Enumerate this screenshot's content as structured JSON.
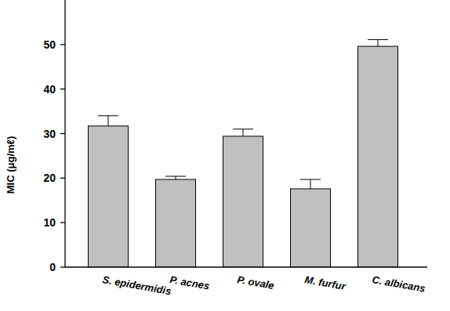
{
  "chart_data": {
    "type": "bar",
    "y_label": "MIC (μg/mℓ)",
    "categories": [
      "S. epidermidis",
      "P. acnes",
      "P. ovale",
      "M. furfur",
      "C. albicans"
    ],
    "values": [
      31.7,
      19.7,
      29.4,
      17.6,
      49.6
    ],
    "errors": [
      2.3,
      0.7,
      1.6,
      2.1,
      1.5
    ],
    "color": "#c0c0c0",
    "ylim": [
      0,
      60
    ],
    "yticks": [
      0,
      10,
      20,
      30,
      40,
      50
    ],
    "grid": false
  }
}
